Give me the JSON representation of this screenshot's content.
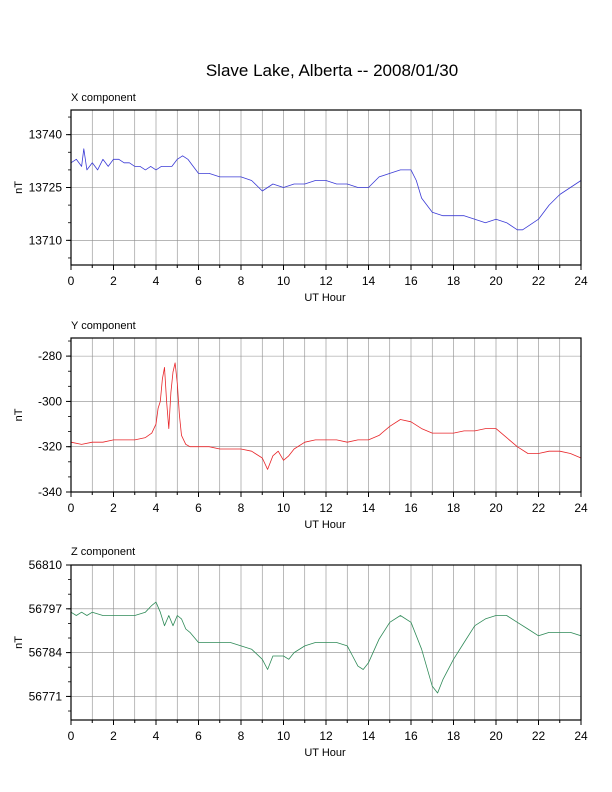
{
  "title": "Slave Lake, Alberta -- 2008/01/30",
  "chart_data": [
    {
      "type": "line",
      "title": "X component",
      "xlabel": "UT Hour",
      "ylabel": "nT",
      "xlim": [
        0,
        24
      ],
      "ylim": [
        13703,
        13747
      ],
      "xticks": [
        0,
        2,
        4,
        6,
        8,
        10,
        12,
        14,
        16,
        18,
        20,
        22,
        24
      ],
      "yticks": [
        13710,
        13725,
        13740
      ],
      "grid": true,
      "color": "#3b3bd6",
      "series": [
        {
          "x": [
            0,
            0.25,
            0.5,
            0.6,
            0.75,
            1,
            1.25,
            1.5,
            1.75,
            2,
            2.25,
            2.5,
            2.75,
            3,
            3.25,
            3.5,
            3.75,
            4,
            4.25,
            4.5,
            4.75,
            5,
            5.25,
            5.5,
            5.75,
            6,
            6.5,
            7,
            7.5,
            8,
            8.5,
            9,
            9.25,
            9.5,
            10,
            10.5,
            11,
            11.5,
            12,
            12.5,
            13,
            13.5,
            14,
            14.5,
            15,
            15.5,
            16,
            16.25,
            16.5,
            17,
            17.5,
            18,
            18.5,
            19,
            19.5,
            20,
            20.5,
            21,
            21.25,
            21.5,
            22,
            22.5,
            23,
            23.5,
            24
          ],
          "y": [
            13732,
            13733,
            13731,
            13736,
            13730,
            13732,
            13730,
            13733,
            13731,
            13733,
            13733,
            13732,
            13732,
            13731,
            13731,
            13730,
            13731,
            13730,
            13731,
            13731,
            13731,
            13733,
            13734,
            13733,
            13731,
            13729,
            13729,
            13728,
            13728,
            13728,
            13727,
            13724,
            13725,
            13726,
            13725,
            13726,
            13726,
            13727,
            13727,
            13726,
            13726,
            13725,
            13725,
            13728,
            13729,
            13730,
            13730,
            13727,
            13722,
            13718,
            13717,
            13717,
            13717,
            13716,
            13715,
            13716,
            13715,
            13713,
            13713,
            13714,
            13716,
            13720,
            13723,
            13725,
            13727
          ]
        }
      ]
    },
    {
      "type": "line",
      "title": "Y component",
      "xlabel": "UT Hour",
      "ylabel": "nT",
      "xlim": [
        0,
        24
      ],
      "ylim": [
        -340,
        -272
      ],
      "xticks": [
        0,
        2,
        4,
        6,
        8,
        10,
        12,
        14,
        16,
        18,
        20,
        22,
        24
      ],
      "yticks": [
        -340,
        -320,
        -300,
        -280
      ],
      "grid": true,
      "color": "#e8262a",
      "series": [
        {
          "x": [
            0,
            0.5,
            1,
            1.5,
            2,
            2.5,
            3,
            3.5,
            3.8,
            4,
            4.1,
            4.2,
            4.3,
            4.4,
            4.5,
            4.6,
            4.7,
            4.8,
            4.9,
            5,
            5.1,
            5.2,
            5.4,
            5.6,
            6,
            6.5,
            7,
            7.5,
            8,
            8.5,
            9,
            9.25,
            9.5,
            9.75,
            10,
            10.25,
            10.5,
            11,
            11.5,
            12,
            12.5,
            13,
            13.5,
            14,
            14.5,
            15,
            15.5,
            16,
            16.5,
            17,
            17.5,
            18,
            18.5,
            19,
            19.5,
            20,
            20.5,
            21,
            21.5,
            22,
            22.5,
            23,
            23.5,
            24
          ],
          "y": [
            -318,
            -319,
            -318,
            -318,
            -317,
            -317,
            -317,
            -316,
            -314,
            -310,
            -303,
            -300,
            -290,
            -285,
            -300,
            -312,
            -296,
            -287,
            -283,
            -292,
            -306,
            -315,
            -319,
            -320,
            -320,
            -320,
            -321,
            -321,
            -321,
            -322,
            -325,
            -330,
            -324,
            -322,
            -326,
            -324,
            -321,
            -318,
            -317,
            -317,
            -317,
            -318,
            -317,
            -317,
            -315,
            -311,
            -308,
            -309,
            -312,
            -314,
            -314,
            -314,
            -313,
            -313,
            -312,
            -312,
            -316,
            -320,
            -323,
            -323,
            -322,
            -322,
            -323,
            -325
          ]
        }
      ]
    },
    {
      "type": "line",
      "title": "Z component",
      "xlabel": "UT Hour",
      "ylabel": "nT",
      "xlim": [
        0,
        24
      ],
      "ylim": [
        56764,
        56810
      ],
      "xticks": [
        0,
        2,
        4,
        6,
        8,
        10,
        12,
        14,
        16,
        18,
        20,
        22,
        24
      ],
      "yticks": [
        56771,
        56784,
        56797,
        56810
      ],
      "grid": true,
      "color": "#2f8a58",
      "series": [
        {
          "x": [
            0,
            0.25,
            0.5,
            0.75,
            1,
            1.5,
            2,
            2.5,
            3,
            3.5,
            3.8,
            4,
            4.2,
            4.4,
            4.6,
            4.8,
            5,
            5.2,
            5.4,
            5.6,
            6,
            6.5,
            7,
            7.5,
            8,
            8.5,
            9,
            9.25,
            9.5,
            10,
            10.25,
            10.5,
            11,
            11.5,
            12,
            12.5,
            13,
            13.25,
            13.5,
            13.75,
            14,
            14.5,
            15,
            15.5,
            16,
            16.5,
            17,
            17.25,
            17.5,
            18,
            18.5,
            19,
            19.5,
            20,
            20.5,
            21,
            21.5,
            22,
            22.5,
            23,
            23.5,
            24
          ],
          "y": [
            56796,
            56795,
            56796,
            56795,
            56796,
            56795,
            56795,
            56795,
            56795,
            56796,
            56798,
            56799,
            56796,
            56792,
            56795,
            56792,
            56795,
            56794,
            56791,
            56790,
            56787,
            56787,
            56787,
            56787,
            56786,
            56785,
            56782,
            56779,
            56783,
            56783,
            56782,
            56784,
            56786,
            56787,
            56787,
            56787,
            56786,
            56783,
            56780,
            56779,
            56781,
            56788,
            56793,
            56795,
            56793,
            56785,
            56774,
            56772,
            56776,
            56782,
            56787,
            56792,
            56794,
            56795,
            56795,
            56793,
            56791,
            56789,
            56790,
            56790,
            56790,
            56789
          ]
        }
      ]
    }
  ]
}
